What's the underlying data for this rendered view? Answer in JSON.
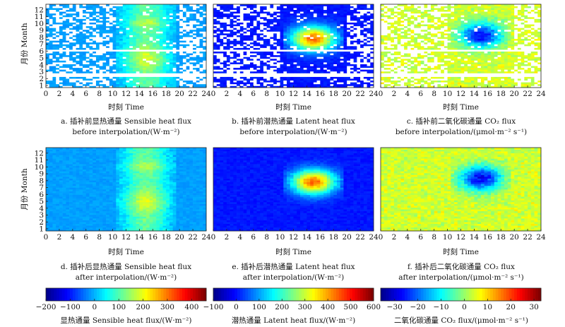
{
  "panels": [
    {
      "caption1": "a. 插补前显热通量 Sensible heat flux",
      "caption2": "before interpolation/(W·m⁻²)",
      "variable": "sensible",
      "state": "before"
    },
    {
      "caption1": "b. 插补前潜热通量 Latent heat flux",
      "caption2": "before interpolation/(W·m⁻²)",
      "variable": "latent",
      "state": "before"
    },
    {
      "caption1": "c. 插补前二氧化碳通量 CO₂ flux",
      "caption2": "before interpolation/(μmol·m⁻² s⁻¹)",
      "variable": "co2",
      "state": "before"
    },
    {
      "caption1": "d. 插补后显热通量 Sensible heat flux",
      "caption2": "after interpolation/(W·m⁻²)",
      "variable": "sensible",
      "state": "after"
    },
    {
      "caption1": "e. 插补后潜热通量 Latent heat flux",
      "caption2": "after interpolation/(W·m⁻²)",
      "variable": "latent",
      "state": "after"
    },
    {
      "caption1": "f. 插补后二氧化碳通量 CO₂ flux",
      "caption2": "after interpolation/(μmol·m⁻² s⁻¹)",
      "variable": "co2",
      "state": "after"
    }
  ],
  "axes": {
    "xlabel": "时刻 Time",
    "ylabel": "月份 Month",
    "xticks": [
      "0",
      "2",
      "4",
      "6",
      "8",
      "10",
      "12",
      "14",
      "16",
      "18",
      "20",
      "22",
      "24"
    ],
    "yticks": [
      "1",
      "2",
      "3",
      "4",
      "5",
      "6",
      "7",
      "8",
      "9",
      "10",
      "11",
      "12"
    ]
  },
  "colorbars": [
    {
      "label": "显热通量 Sensible heat flux/(W·m⁻²)",
      "ticks": [
        "−200",
        "−100",
        "0",
        "100",
        "200",
        "300",
        "400"
      ],
      "min": -200,
      "max": 460
    },
    {
      "label": "潜热通量 Latent heat flux/(W·m⁻²)",
      "ticks": [
        "−100",
        "0",
        "100",
        "200",
        "300",
        "400",
        "500",
        "600"
      ],
      "min": -100,
      "max": 600
    },
    {
      "label": "二氧化碳通量 CO₂ flux/(μmol·m⁻² s⁻¹)",
      "ticks": [
        "−30",
        "−20",
        "−10",
        "0",
        "10",
        "20",
        "30"
      ],
      "min": -36,
      "max": 33
    }
  ],
  "colormap": [
    "#00008f",
    "#0000ff",
    "#0080ff",
    "#00ffff",
    "#80ff80",
    "#ffff00",
    "#ff8000",
    "#ff0000",
    "#800000"
  ],
  "chart_data": [
    {
      "type": "heatmap",
      "xlim": [
        0,
        24
      ],
      "ylim": [
        1,
        12.5
      ],
      "xlabel": "时刻 Time",
      "ylabel": "月份 Month",
      "colorbar": "显热通量 Sensible heat flux/(W·m⁻²)",
      "state": "before interpolation (gaps shown white)",
      "peak_hour": 15,
      "peak_months": [
        5,
        10
      ],
      "nighttime_value": -20,
      "daytime_peak": 200
    },
    {
      "type": "heatmap",
      "xlim": [
        0,
        24
      ],
      "ylim": [
        1,
        12.5
      ],
      "xlabel": "时刻 Time",
      "ylabel": "月份 Month",
      "colorbar": "潜热通量 Latent heat flux/(W·m⁻²)",
      "state": "before interpolation (gaps shown white)",
      "peak_hour": 15,
      "peak_months": [
        8
      ],
      "nighttime_value": 0,
      "daytime_peak": 420
    },
    {
      "type": "heatmap",
      "xlim": [
        0,
        24
      ],
      "ylim": [
        1,
        12.5
      ],
      "xlabel": "时刻 Time",
      "ylabel": "月份 Month",
      "colorbar": "二氧化碳通量 CO₂ flux/(μmol·m⁻² s⁻¹)",
      "state": "before interpolation (gaps shown white)",
      "peak_hour": 15,
      "peak_months": [
        9
      ],
      "nighttime_value": 3,
      "daytime_peak": -25
    },
    {
      "type": "heatmap",
      "xlim": [
        0,
        24
      ],
      "ylim": [
        1,
        12.5
      ],
      "xlabel": "时刻 Time",
      "ylabel": "月份 Month",
      "colorbar": "显热通量 Sensible heat flux/(W·m⁻²)",
      "state": "after interpolation",
      "peak_hour": 15,
      "peak_months": [
        5,
        10
      ],
      "nighttime_value": -20,
      "daytime_peak": 200
    },
    {
      "type": "heatmap",
      "xlim": [
        0,
        24
      ],
      "ylim": [
        1,
        12.5
      ],
      "xlabel": "时刻 Time",
      "ylabel": "月份 Month",
      "colorbar": "潜热通量 Latent heat flux/(W·m⁻²)",
      "state": "after interpolation",
      "peak_hour": 15,
      "peak_months": [
        8
      ],
      "nighttime_value": 0,
      "daytime_peak": 420
    },
    {
      "type": "heatmap",
      "xlim": [
        0,
        24
      ],
      "ylim": [
        1,
        12.5
      ],
      "xlabel": "时刻 Time",
      "ylabel": "月份 Month",
      "colorbar": "二氧化碳通量 CO₂ flux/(μmol·m⁻² s⁻¹)",
      "state": "after interpolation",
      "peak_hour": 15,
      "peak_months": [
        9
      ],
      "nighttime_value": 3,
      "daytime_peak": -25
    }
  ]
}
